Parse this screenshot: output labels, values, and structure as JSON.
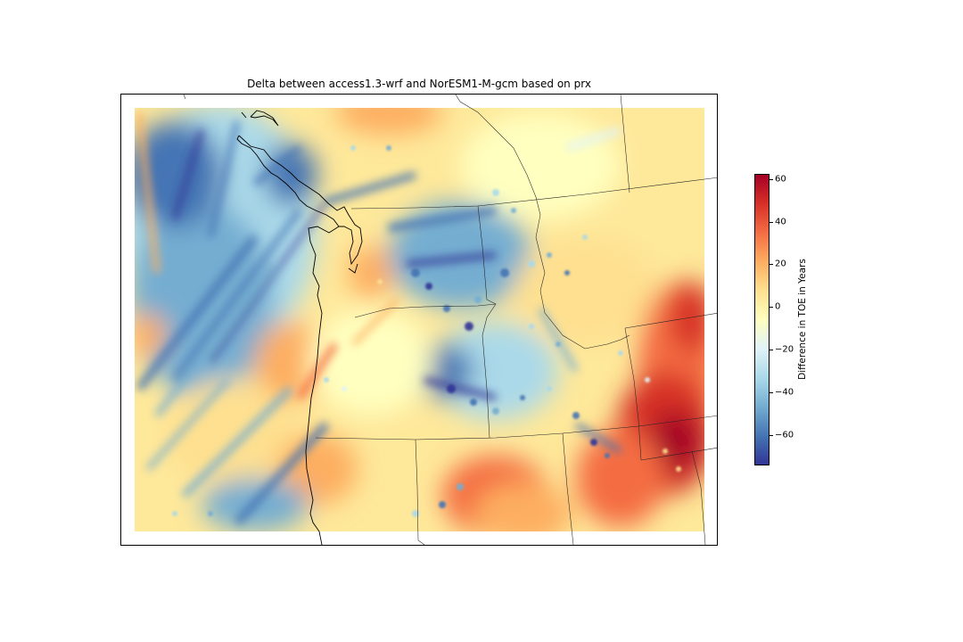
{
  "map": {
    "title": "Delta between access1.3-wrf and NorESM1-M-gcm based on prx",
    "region": "Pacific Northwest",
    "field_colormap": [
      "#313695",
      "#4575b4",
      "#74add1",
      "#abd9e9",
      "#e0f3f8",
      "#ffffbf",
      "#fee090",
      "#fdae61",
      "#f46d43",
      "#d73027",
      "#a50026"
    ]
  },
  "colorbar": {
    "label": "Difference in TOE in Years",
    "vmin": -74,
    "vmax": 62,
    "ticks": [
      "60",
      "40",
      "20",
      "0",
      "−20",
      "−40",
      "−60"
    ],
    "tick_values": [
      60,
      40,
      20,
      0,
      -20,
      -40,
      -60
    ]
  }
}
